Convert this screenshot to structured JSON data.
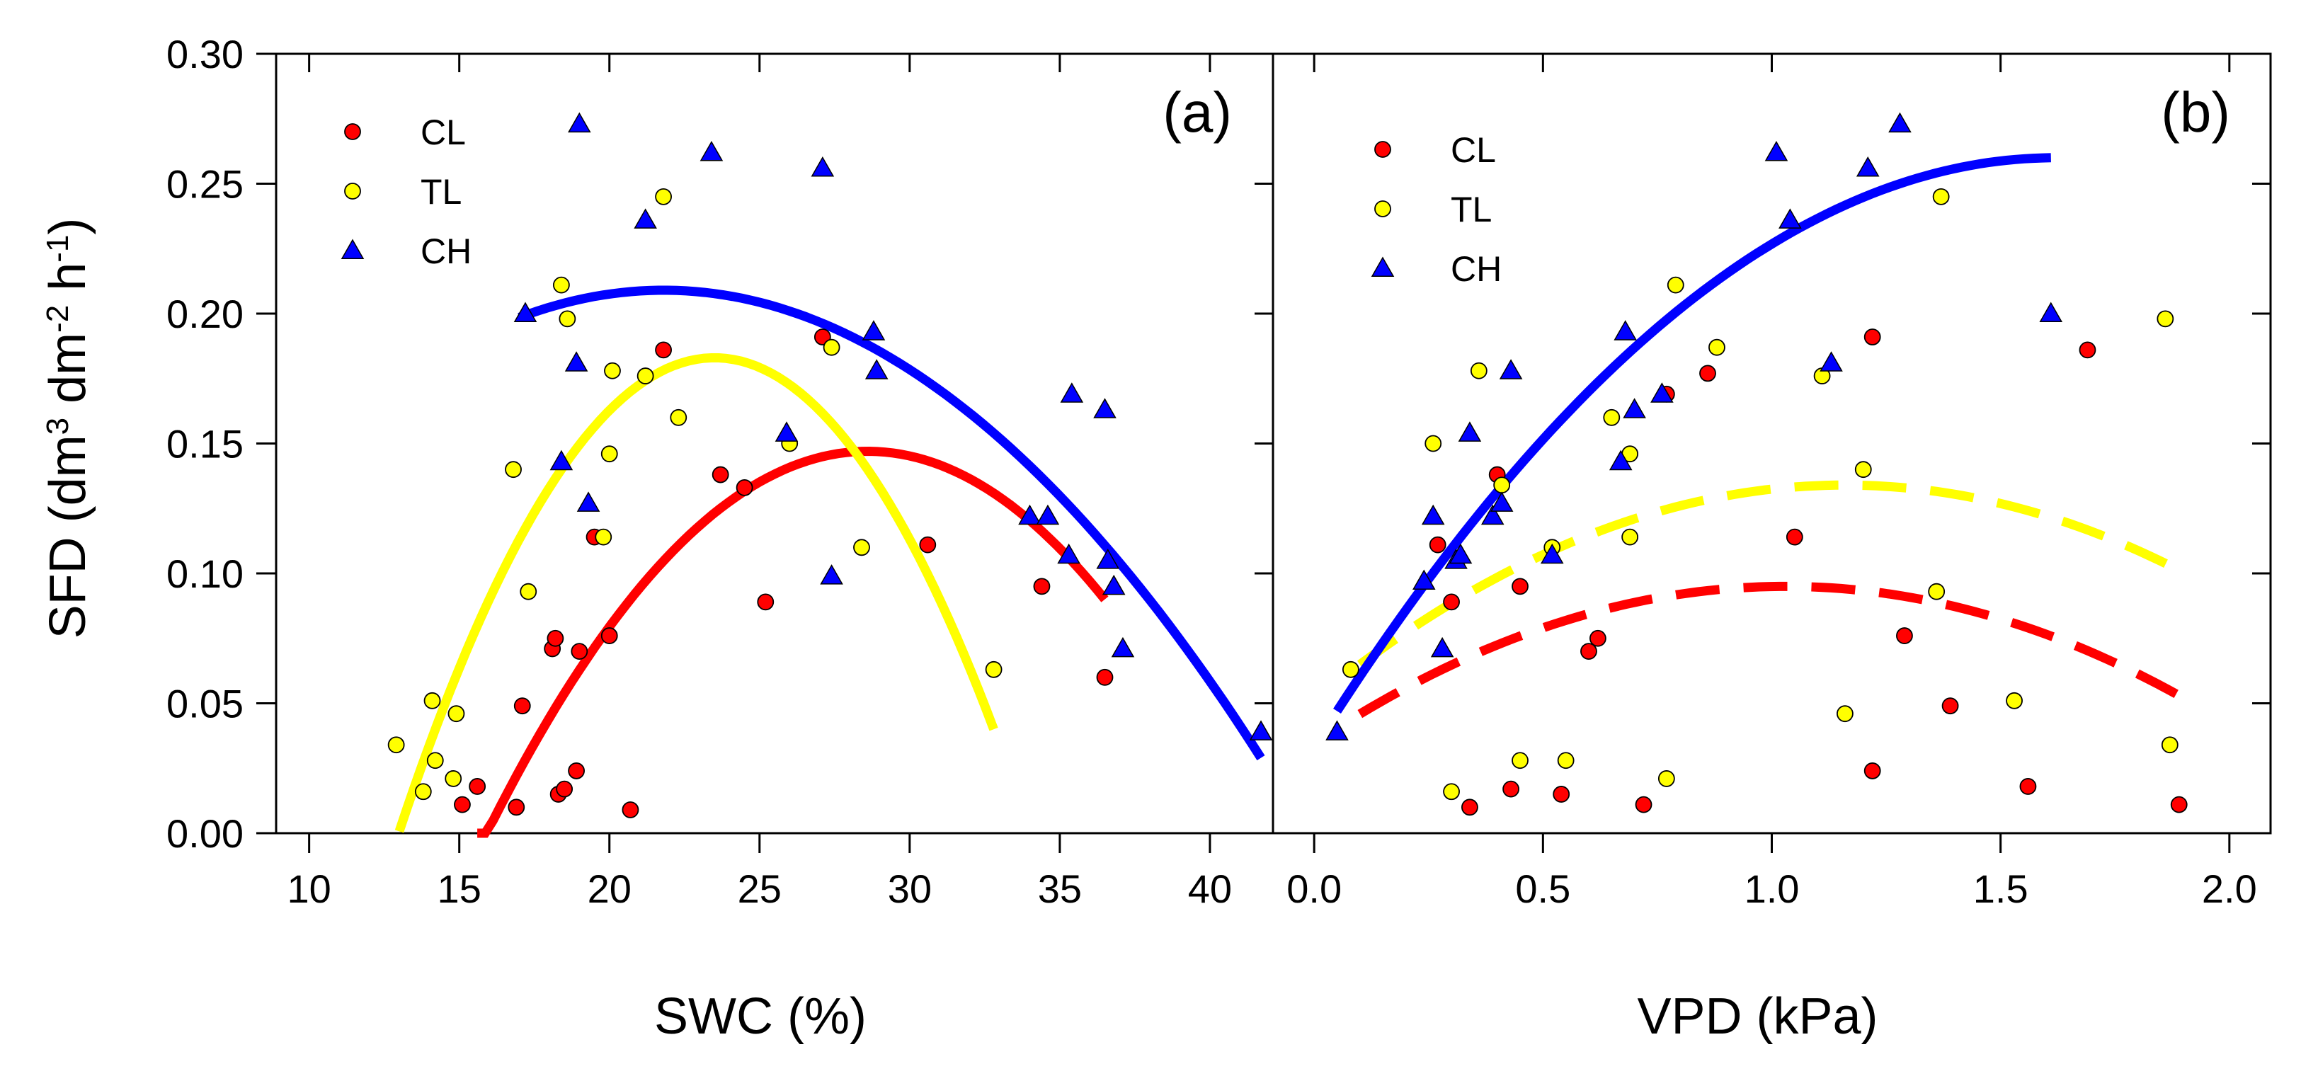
{
  "figure": {
    "y_axis_label": "SFD (dm³ dm⁻² h⁻¹)",
    "y_axis_label_parts": {
      "main": "SFD (dm",
      "e1": "3",
      "m2": " dm",
      "e2": "-2",
      "m3": " h",
      "e3": "-1",
      "end": ")"
    },
    "y_ticks": [
      "0.00",
      "0.05",
      "0.10",
      "0.15",
      "0.20",
      "0.25",
      "0.30"
    ],
    "y_tick_values": [
      0,
      0.05,
      0.1,
      0.15,
      0.2,
      0.25,
      0.3
    ],
    "ylim": [
      0,
      0.3
    ]
  },
  "legend": [
    {
      "name": "CL",
      "color": "#ff0000",
      "marker": "circle"
    },
    {
      "name": "TL",
      "color": "#ffff00",
      "marker": "circle"
    },
    {
      "name": "CH",
      "color": "#0000ff",
      "marker": "triangle"
    }
  ],
  "chart_data": [
    {
      "type": "scatter",
      "panel_label": "(a)",
      "xlabel": "SWC (%)",
      "ylabel": "SFD (dm³ dm⁻² h⁻¹)",
      "xlim": [
        8.9,
        42.1
      ],
      "ylim": [
        0,
        0.3
      ],
      "x_ticks": [
        "10",
        "15",
        "20",
        "25",
        "30",
        "35",
        "40"
      ],
      "x_tick_values": [
        10,
        15,
        20,
        25,
        30,
        35,
        40
      ],
      "series": [
        {
          "name": "CL",
          "color": "#ff0000",
          "marker": "circle",
          "points": [
            [
              15.1,
              0.011
            ],
            [
              15.6,
              0.018
            ],
            [
              16.9,
              0.01
            ],
            [
              17.1,
              0.049
            ],
            [
              18.1,
              0.071
            ],
            [
              18.2,
              0.075
            ],
            [
              18.3,
              0.015
            ],
            [
              18.5,
              0.017
            ],
            [
              18.9,
              0.024
            ],
            [
              19.0,
              0.07
            ],
            [
              19.5,
              0.114
            ],
            [
              20.0,
              0.076
            ],
            [
              20.7,
              0.009
            ],
            [
              21.8,
              0.186
            ],
            [
              23.7,
              0.138
            ],
            [
              24.5,
              0.133
            ],
            [
              25.2,
              0.089
            ],
            [
              27.1,
              0.191
            ],
            [
              30.6,
              0.111
            ],
            [
              34.4,
              0.095
            ],
            [
              36.5,
              0.06
            ]
          ]
        },
        {
          "name": "TL",
          "color": "#ffff00",
          "marker": "circle",
          "points": [
            [
              12.9,
              0.034
            ],
            [
              13.8,
              0.016
            ],
            [
              14.1,
              0.051
            ],
            [
              14.2,
              0.028
            ],
            [
              14.8,
              0.021
            ],
            [
              14.9,
              0.046
            ],
            [
              16.8,
              0.14
            ],
            [
              17.3,
              0.093
            ],
            [
              18.4,
              0.211
            ],
            [
              18.6,
              0.198
            ],
            [
              19.8,
              0.114
            ],
            [
              20.0,
              0.146
            ],
            [
              20.1,
              0.178
            ],
            [
              21.2,
              0.176
            ],
            [
              21.8,
              0.245
            ],
            [
              22.3,
              0.16
            ],
            [
              26.0,
              0.15
            ],
            [
              27.4,
              0.187
            ],
            [
              28.4,
              0.11
            ],
            [
              32.8,
              0.063
            ]
          ]
        },
        {
          "name": "CH",
          "color": "#0000ff",
          "marker": "triangle",
          "points": [
            [
              17.2,
              0.2
            ],
            [
              18.4,
              0.143
            ],
            [
              18.9,
              0.181
            ],
            [
              19.0,
              0.273
            ],
            [
              19.3,
              0.127
            ],
            [
              21.2,
              0.236
            ],
            [
              23.4,
              0.262
            ],
            [
              25.9,
              0.154
            ],
            [
              27.1,
              0.256
            ],
            [
              27.4,
              0.099
            ],
            [
              28.8,
              0.193
            ],
            [
              28.9,
              0.178
            ],
            [
              34.0,
              0.122
            ],
            [
              34.6,
              0.122
            ],
            [
              35.3,
              0.107
            ],
            [
              35.4,
              0.169
            ],
            [
              36.5,
              0.163
            ],
            [
              36.6,
              0.105
            ],
            [
              36.8,
              0.095
            ],
            [
              37.1,
              0.071
            ],
            [
              41.7,
              0.039
            ]
          ]
        }
      ],
      "fits": [
        {
          "name": "CL",
          "color": "#ff0000",
          "style": "solid",
          "x_range": [
            15.6,
            36.5
          ],
          "vertex": [
            28.6,
            0.147
          ],
          "end_y": 0.09
        },
        {
          "name": "TL",
          "color": "#ffff00",
          "style": "solid",
          "x_range": [
            13.0,
            32.8
          ],
          "vertex": [
            23.5,
            0.183
          ],
          "end_y": 0.04
        },
        {
          "name": "CH",
          "color": "#0000ff",
          "style": "solid",
          "x_range": [
            17.0,
            41.7
          ],
          "vertex": [
            21.8,
            0.209
          ],
          "end_y": 0.029
        }
      ]
    },
    {
      "type": "scatter",
      "panel_label": "(b)",
      "xlabel": "VPD (kPa)",
      "ylabel": "SFD (dm³ dm⁻² h⁻¹)",
      "xlim": [
        -0.09,
        2.09
      ],
      "ylim": [
        0,
        0.3
      ],
      "x_ticks": [
        "0.0",
        "0.5",
        "1.0",
        "1.5",
        "2.0"
      ],
      "x_tick_values": [
        0,
        0.5,
        1.0,
        1.5,
        2.0
      ],
      "series": [
        {
          "name": "CL",
          "color": "#ff0000",
          "marker": "circle",
          "points": [
            [
              0.3,
              0.089
            ],
            [
              0.34,
              0.01
            ],
            [
              0.27,
              0.111
            ],
            [
              0.4,
              0.138
            ],
            [
              0.43,
              0.017
            ],
            [
              0.45,
              0.095
            ],
            [
              0.54,
              0.015
            ],
            [
              0.6,
              0.07
            ],
            [
              0.62,
              0.075
            ],
            [
              0.72,
              0.011
            ],
            [
              0.77,
              0.169
            ],
            [
              0.86,
              0.177
            ],
            [
              1.05,
              0.114
            ],
            [
              1.22,
              0.191
            ],
            [
              1.22,
              0.024
            ],
            [
              1.29,
              0.076
            ],
            [
              1.39,
              0.049
            ],
            [
              1.56,
              0.018
            ],
            [
              1.69,
              0.186
            ],
            [
              1.89,
              0.011
            ]
          ]
        },
        {
          "name": "TL",
          "color": "#ffff00",
          "marker": "circle",
          "points": [
            [
              0.08,
              0.063
            ],
            [
              0.26,
              0.15
            ],
            [
              0.3,
              0.016
            ],
            [
              0.36,
              0.178
            ],
            [
              0.41,
              0.134
            ],
            [
              0.45,
              0.028
            ],
            [
              0.52,
              0.11
            ],
            [
              0.55,
              0.028
            ],
            [
              0.65,
              0.16
            ],
            [
              0.69,
              0.114
            ],
            [
              0.69,
              0.146
            ],
            [
              0.77,
              0.021
            ],
            [
              0.79,
              0.211
            ],
            [
              0.88,
              0.187
            ],
            [
              1.11,
              0.176
            ],
            [
              1.16,
              0.046
            ],
            [
              1.2,
              0.14
            ],
            [
              1.36,
              0.093
            ],
            [
              1.37,
              0.245
            ],
            [
              1.53,
              0.051
            ],
            [
              1.86,
              0.198
            ],
            [
              1.87,
              0.034
            ]
          ]
        },
        {
          "name": "CH",
          "color": "#0000ff",
          "marker": "triangle",
          "points": [
            [
              0.05,
              0.039
            ],
            [
              0.24,
              0.097
            ],
            [
              0.26,
              0.122
            ],
            [
              0.28,
              0.071
            ],
            [
              0.31,
              0.105
            ],
            [
              0.32,
              0.107
            ],
            [
              0.34,
              0.154
            ],
            [
              0.39,
              0.122
            ],
            [
              0.41,
              0.127
            ],
            [
              0.43,
              0.178
            ],
            [
              0.52,
              0.107
            ],
            [
              0.67,
              0.143
            ],
            [
              0.68,
              0.193
            ],
            [
              0.7,
              0.163
            ],
            [
              0.76,
              0.169
            ],
            [
              1.01,
              0.262
            ],
            [
              1.04,
              0.236
            ],
            [
              1.13,
              0.181
            ],
            [
              1.21,
              0.256
            ],
            [
              1.28,
              0.273
            ],
            [
              1.61,
              0.2
            ]
          ]
        }
      ],
      "fits": [
        {
          "name": "CL",
          "color": "#ff0000",
          "style": "dashed",
          "x_range": [
            0.1,
            1.89
          ],
          "vertex": [
            1.03,
            0.095
          ],
          "end_y": 0.053
        },
        {
          "name": "TL",
          "color": "#ffff00",
          "style": "dashed",
          "x_range": [
            0.1,
            1.87
          ],
          "vertex": [
            1.16,
            0.134
          ],
          "end_y": 0.103
        },
        {
          "name": "CH",
          "color": "#0000ff",
          "style": "solid",
          "x_range": [
            0.05,
            1.61
          ],
          "vertex": [
            1.62,
            0.26
          ],
          "start_y": 0.047
        }
      ]
    }
  ]
}
